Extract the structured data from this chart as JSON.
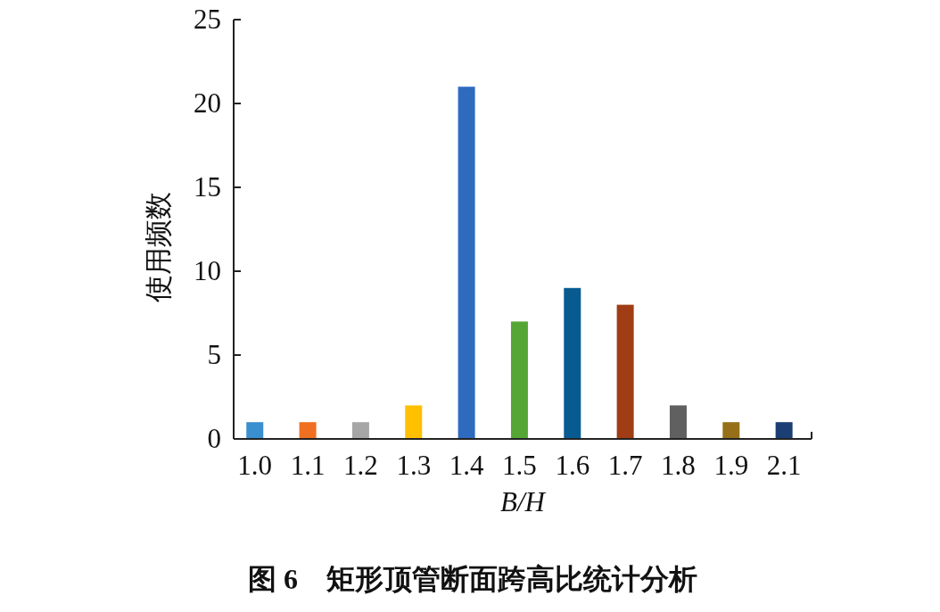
{
  "chart_data": {
    "type": "bar",
    "title": "图 6　矩形顶管断面跨高比统计分析",
    "xlabel": "B/H",
    "ylabel": "使用频数",
    "categories": [
      "1.0",
      "1.1",
      "1.2",
      "1.3",
      "1.4",
      "1.5",
      "1.6",
      "1.7",
      "1.8",
      "1.9",
      "2.1"
    ],
    "values": [
      1,
      1,
      1,
      2,
      21,
      7,
      9,
      8,
      2,
      1,
      1
    ],
    "colors": [
      "#3a8fd0",
      "#ef7020",
      "#a6a6a6",
      "#ffc000",
      "#2e6bbf",
      "#56a636",
      "#075b91",
      "#a03d14",
      "#606060",
      "#957019",
      "#1b3f75"
    ],
    "ylim": [
      0,
      25
    ],
    "yticks": [
      0,
      5,
      10,
      15,
      20,
      25
    ],
    "grid": false
  }
}
